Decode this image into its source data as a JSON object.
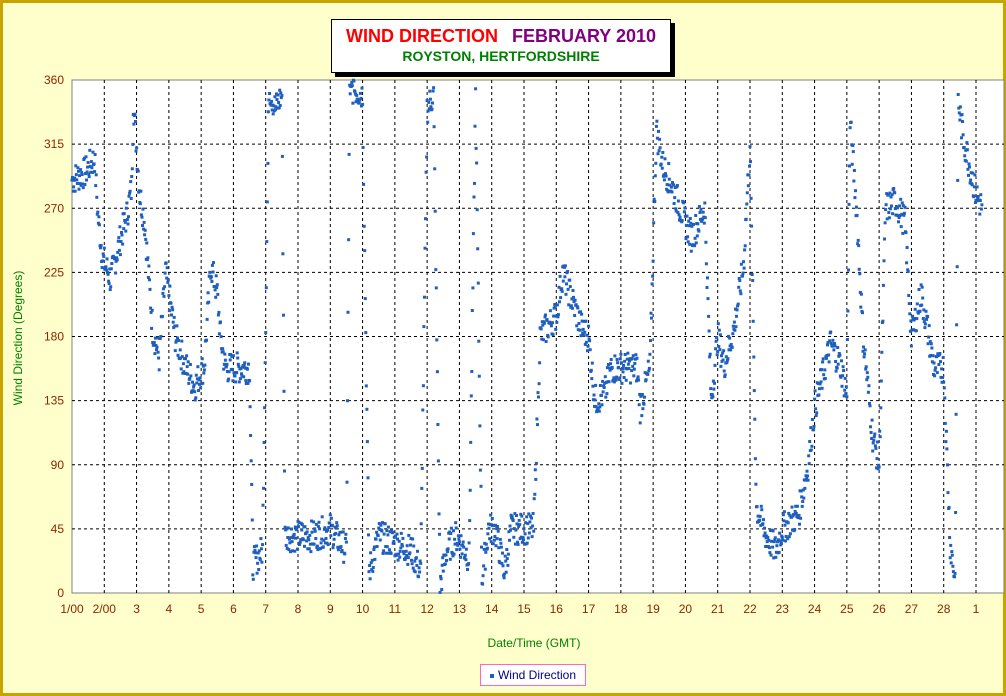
{
  "title": {
    "line1a": "WIND DIRECTION",
    "line1b": "FEBRUARY 2010",
    "line2": "ROYSTON, HERTFORDSHIRE"
  },
  "colors": {
    "background": "#ffffcc",
    "frame": "#c8a400",
    "series": "#1f5fbf",
    "ticks": "#8b2500",
    "axis_titles": "#008000"
  },
  "chart_data": {
    "type": "scatter",
    "title": "WIND DIRECTION FEBRUARY 2010",
    "subtitle": "ROYSTON, HERTFORDSHIRE",
    "xlabel": "Date/Time (GMT)",
    "ylabel": "Wind Direction (Degrees)",
    "ylim": [
      0,
      360
    ],
    "y_ticks": [
      "0",
      "45",
      "90",
      "135",
      "180",
      "225",
      "270",
      "315",
      "360"
    ],
    "x_ticks": [
      "1/00",
      "2/00",
      "3",
      "4",
      "5",
      "6",
      "7",
      "8",
      "9",
      "10",
      "11",
      "12",
      "13",
      "14",
      "15",
      "16",
      "17",
      "18",
      "19",
      "20",
      "21",
      "22",
      "23",
      "24",
      "25",
      "26",
      "27",
      "28",
      "1"
    ],
    "xlim_days": [
      1,
      29
    ],
    "grid": true,
    "legend": "bottom-center",
    "series": [
      {
        "name": "Wind Direction",
        "marker": "dot",
        "trend": [
          [
            1.0,
            290
          ],
          [
            1.4,
            295
          ],
          [
            1.7,
            305
          ],
          [
            1.8,
            265
          ],
          [
            1.95,
            235
          ],
          [
            2.2,
            220
          ],
          [
            2.4,
            240
          ],
          [
            2.7,
            265
          ],
          [
            2.85,
            285
          ],
          [
            2.9,
            345
          ],
          [
            3.1,
            280
          ],
          [
            3.25,
            260
          ],
          [
            3.5,
            185
          ],
          [
            3.7,
            165
          ],
          [
            3.9,
            225
          ],
          [
            4.2,
            180
          ],
          [
            4.5,
            160
          ],
          [
            4.8,
            145
          ],
          [
            5.1,
            160
          ],
          [
            5.3,
            230
          ],
          [
            5.5,
            210
          ],
          [
            5.6,
            180
          ],
          [
            5.75,
            158
          ],
          [
            6.5,
            158
          ],
          [
            6.6,
            20
          ],
          [
            6.9,
            30
          ],
          [
            7.1,
            355
          ],
          [
            7.3,
            340
          ],
          [
            7.5,
            350
          ],
          [
            7.6,
            40
          ],
          [
            8.5,
            40
          ],
          [
            9.0,
            45
          ],
          [
            9.5,
            30
          ],
          [
            9.6,
            355
          ],
          [
            10.0,
            350
          ],
          [
            10.2,
            15
          ],
          [
            10.5,
            40
          ],
          [
            11.0,
            35
          ],
          [
            11.5,
            30
          ],
          [
            11.8,
            15
          ],
          [
            12.0,
            340
          ],
          [
            12.2,
            350
          ],
          [
            12.4,
            5
          ],
          [
            12.6,
            30
          ],
          [
            12.9,
            40
          ],
          [
            13.3,
            25
          ],
          [
            13.5,
            350
          ],
          [
            13.7,
            10
          ],
          [
            13.9,
            45
          ],
          [
            14.1,
            45
          ],
          [
            14.4,
            15
          ],
          [
            14.6,
            45
          ],
          [
            15.3,
            45
          ],
          [
            15.5,
            180
          ],
          [
            16.0,
            195
          ],
          [
            16.2,
            225
          ],
          [
            16.5,
            205
          ],
          [
            16.8,
            185
          ],
          [
            17.0,
            180
          ],
          [
            17.2,
            135
          ],
          [
            17.5,
            140
          ],
          [
            17.7,
            158
          ],
          [
            18.5,
            158
          ],
          [
            18.6,
            130
          ],
          [
            18.9,
            158
          ],
          [
            19.1,
            325
          ],
          [
            19.3,
            300
          ],
          [
            19.6,
            285
          ],
          [
            20.0,
            260
          ],
          [
            20.2,
            250
          ],
          [
            20.6,
            270
          ],
          [
            20.8,
            135
          ],
          [
            21.0,
            180
          ],
          [
            21.2,
            160
          ],
          [
            21.5,
            185
          ],
          [
            21.8,
            230
          ],
          [
            22.0,
            315
          ],
          [
            22.2,
            60
          ],
          [
            22.5,
            40
          ],
          [
            22.8,
            30
          ],
          [
            23.0,
            45
          ],
          [
            23.5,
            55
          ],
          [
            23.8,
            90
          ],
          [
            24.0,
            130
          ],
          [
            24.5,
            175
          ],
          [
            24.8,
            160
          ],
          [
            25.0,
            140
          ],
          [
            25.1,
            330
          ],
          [
            25.3,
            270
          ],
          [
            25.5,
            180
          ],
          [
            25.8,
            110
          ],
          [
            26.0,
            90
          ],
          [
            26.2,
            270
          ],
          [
            26.5,
            275
          ],
          [
            26.8,
            260
          ],
          [
            27.0,
            180
          ],
          [
            27.3,
            210
          ],
          [
            27.5,
            185
          ],
          [
            27.7,
            158
          ],
          [
            28.0,
            158
          ],
          [
            28.2,
            35
          ],
          [
            28.35,
            10
          ],
          [
            28.45,
            345
          ],
          [
            28.6,
            320
          ],
          [
            28.85,
            295
          ],
          [
            29.0,
            280
          ],
          [
            29.2,
            270
          ]
        ]
      }
    ]
  },
  "legend": {
    "label": "Wind Direction"
  }
}
